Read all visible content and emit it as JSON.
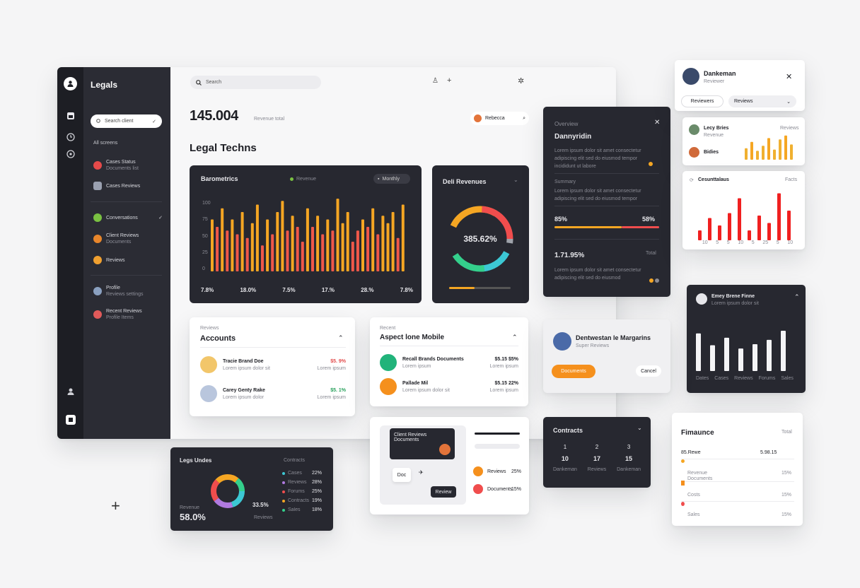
{
  "app": {
    "title": "Legals"
  },
  "search": {
    "placeholder": "Search"
  },
  "sidebar": {
    "search_placeholder": "Search client",
    "section_label": "All screens",
    "items": [
      {
        "label": "Cases Status",
        "sub": "Documents list",
        "color": "#e54a4a"
      },
      {
        "label": "Cases Reviews",
        "sub": "",
        "color": "#9aa0b0"
      },
      {
        "label": "Conversations",
        "sub": "",
        "color": "#7ac142"
      },
      {
        "label": "Client Reviews",
        "sub": "Documents",
        "color": "#e8862b"
      },
      {
        "label": "Reviews",
        "sub": "",
        "color": "#f0a030"
      },
      {
        "label": "Profile",
        "sub": "Reviews settings",
        "color": "#8aa0c0"
      },
      {
        "label": "Recent Reviews",
        "sub": "Profile Items",
        "color": "#e05a5a"
      }
    ]
  },
  "header": {
    "kpi_value": "145.004",
    "kpi_note": "Revenue total",
    "user_chip": "Rebecca",
    "page_title": "Legal Techns"
  },
  "bar_panel": {
    "title": "Barometrics",
    "legend": "Revenue",
    "dropdown": "Monthly",
    "stats": [
      "7.8%",
      "18.0%",
      "7.5%",
      "17.%",
      "28.%",
      "7.8%"
    ],
    "y_ticks": [
      "100",
      "75",
      "50",
      "25",
      "0"
    ]
  },
  "donut_panel": {
    "title": "Deli Revenues",
    "value": "385.62%"
  },
  "accounts_card": {
    "kicker": "Reviews",
    "title": "Accounts",
    "rows": [
      {
        "name": "Tracie Brand Doe",
        "sub": "Lorem ipsum dolor sit",
        "val": "$5.",
        "val2": "9%",
        "color": "#e24c4c",
        "sub2": "Lorem ipsum"
      },
      {
        "name": "Carey Genty Rake",
        "sub": "Lorem ipsum dolor",
        "val": "$5.",
        "val2": "1%",
        "color": "#26a05a",
        "sub2": "Lorem ipsum"
      }
    ]
  },
  "mobile_card": {
    "kicker": "Recent",
    "title": "Aspect lone Mobile",
    "rows": [
      {
        "name": "Recall Brands Documents",
        "sub": "Lorem ipsum",
        "val": "$5.15 $5%",
        "sub2": "Lorem ipsum"
      },
      {
        "name": "Pallade Mil",
        "sub": "Lorem ipsum dolor sit",
        "val": "$5.15 22%",
        "sub2": "Lorem ipsum"
      }
    ]
  },
  "detail_panel": {
    "kicker": "Overview",
    "title": "Dannyridin",
    "paragraph": "Lorem ipsum dolor sit amet consectetur adipiscing elit sed do eiusmod tempor incididunt ut labore",
    "section_label": "Summary",
    "section_text": "Lorem ipsum dolor sit amet consectetur adipiscing elit sed do eiusmod tempor",
    "left_val": "85%",
    "right_val": "58%",
    "big_val": "1.71.95%",
    "big_note": "Total",
    "footer_text": "Lorem ipsum dolor sit amet consectetur adipiscing elit sed do eiusmod"
  },
  "profile_card": {
    "name": "Dankeman",
    "role": "Reviewer",
    "button1": "Reviewers",
    "select": "Reviews"
  },
  "mini_bars_card": {
    "rows": [
      {
        "name": "Lecy Bries",
        "sub": "Revenue"
      },
      {
        "name": "Bidies",
        "sub": ""
      }
    ],
    "right_label": "Reviews"
  },
  "red_bars_card": {
    "title": "Cesunttalaus",
    "right": "Facts",
    "axis": [
      "10",
      "5",
      "5",
      "10",
      "5",
      "25",
      "5",
      "10"
    ]
  },
  "dark_bars_card": {
    "title": "Emey Brene Finne",
    "sub": "Lorem ipsum dolor sit",
    "legend": [
      "Dates",
      "Cases",
      "Reviews",
      "Forums",
      "Sales"
    ]
  },
  "notification_card": {
    "title": "Dentwestan le Margarins",
    "sub": "Super Reviews",
    "primary": "Documents",
    "secondary": "Cancel"
  },
  "contracts_card": {
    "title": "Contracts",
    "cols": [
      {
        "icon": "1",
        "val": "10",
        "label": "Dankeman"
      },
      {
        "icon": "2",
        "val": "17",
        "label": "Reviews"
      },
      {
        "icon": "3",
        "val": "15",
        "label": "Dankeman"
      }
    ]
  },
  "finance_card": {
    "title": "Fimaunce",
    "right": "Total",
    "rows": [
      {
        "label": "85.Rewe",
        "val": "5.98.15",
        "sub": "",
        "sub_val": ""
      },
      {
        "label": "Revenue",
        "val": "",
        "sub": "Documents",
        "sub_val": "15%"
      },
      {
        "label": "Costs",
        "val": "",
        "sub": "",
        "sub_val": "15%"
      },
      {
        "label": "Sales",
        "val": "",
        "sub": "",
        "sub_val": "15%"
      }
    ]
  },
  "legal_donut_card": {
    "title": "Legs Undes",
    "right": "Contracts",
    "left_val": "58.0%",
    "center_val": "33.5%",
    "sub": "Revenue",
    "small_note": "Reviews",
    "list": [
      "Cases",
      "Reviews",
      "Forums",
      "Contracts",
      "Sales"
    ],
    "list_vals": [
      "22%",
      "28%",
      "25%",
      "19%",
      "18%"
    ]
  },
  "flow_card": {
    "node1": "Client Reviews Documents",
    "node2": "Doc",
    "node3": "Review",
    "list": [
      "Reviews",
      "Documents"
    ],
    "list_vals": [
      "25%",
      "15%"
    ]
  }
}
